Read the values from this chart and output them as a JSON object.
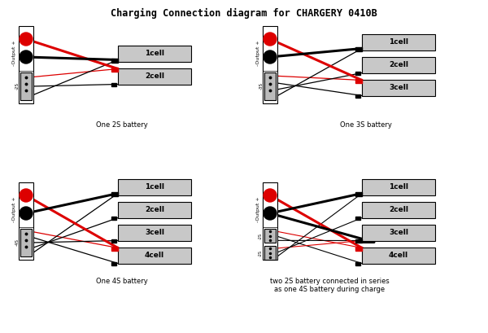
{
  "title": "Charging Connection diagram for CHARGERY 0410B",
  "bg": "#ffffff",
  "red": "#dd0000",
  "black": "#000000",
  "gray_cell": "#c8c8c8",
  "gray_bal": "#bbbbbb",
  "white": "#ffffff",
  "diagrams": [
    {
      "label": "One 2S battery",
      "ncells": 2,
      "bal_label": "-2S",
      "quad": 0
    },
    {
      "label": "One 3S battery",
      "ncells": 3,
      "bal_label": "-3S",
      "quad": 1
    },
    {
      "label": "One 4S battery",
      "ncells": 4,
      "bal_label": "-4S",
      "quad": 2
    },
    {
      "label": "two 2S battery connected in series\nas one 4S battery during charge",
      "ncells": 4,
      "bal_label": "-2S",
      "quad": 3,
      "special": true
    }
  ]
}
